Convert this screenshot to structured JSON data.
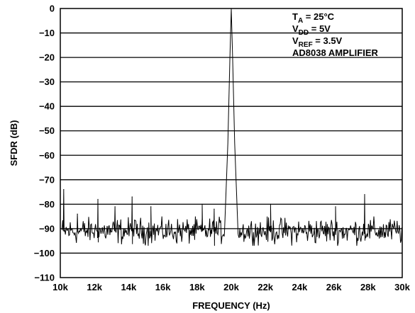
{
  "chart_data": {
    "type": "line",
    "xlabel": "FREQUENCY (Hz)",
    "ylabel": "SFDR (dB)",
    "xlim": [
      10000,
      30000
    ],
    "ylim": [
      -110,
      0
    ],
    "x_ticks": [
      10000,
      12000,
      14000,
      16000,
      18000,
      20000,
      22000,
      24000,
      26000,
      28000,
      30000
    ],
    "x_tick_labels": [
      "10k",
      "12k",
      "14k",
      "16k",
      "18k",
      "20k",
      "22k",
      "24k",
      "26k",
      "28k",
      "30k"
    ],
    "y_ticks": [
      0,
      -10,
      -20,
      -30,
      -40,
      -50,
      -60,
      -70,
      -80,
      -90,
      -100,
      -110
    ],
    "y_tick_labels": [
      "0",
      "−10",
      "−20",
      "−30",
      "−40",
      "−50",
      "−60",
      "−70",
      "−80",
      "−90",
      "−100",
      "−110"
    ],
    "grid": "horizontal",
    "noise_floor_db": -91,
    "noise_band_db": [
      -97,
      -85
    ],
    "fundamental": {
      "x": 20000,
      "y": 0
    },
    "spurs": [
      {
        "x": 10200,
        "y": -74
      },
      {
        "x": 11000,
        "y": -84
      },
      {
        "x": 12200,
        "y": -78
      },
      {
        "x": 13200,
        "y": -81
      },
      {
        "x": 14200,
        "y": -77
      },
      {
        "x": 15300,
        "y": -81
      },
      {
        "x": 18300,
        "y": -80
      },
      {
        "x": 19000,
        "y": -82
      },
      {
        "x": 22300,
        "y": -80
      },
      {
        "x": 26100,
        "y": -81
      },
      {
        "x": 27800,
        "y": -76
      }
    ],
    "annotations": [
      {
        "main": "T",
        "sub": "A",
        "rest": " = 25°C"
      },
      {
        "main": "V",
        "sub": "DD",
        "rest": " = 5V"
      },
      {
        "main": "V",
        "sub": "REF",
        "rest": " = 3.5V"
      },
      {
        "main": "AD8038 AMPLIFIER",
        "sub": "",
        "rest": ""
      }
    ],
    "colors": {
      "line": "#000000",
      "peak": "#555555",
      "grid": "#000000"
    }
  }
}
